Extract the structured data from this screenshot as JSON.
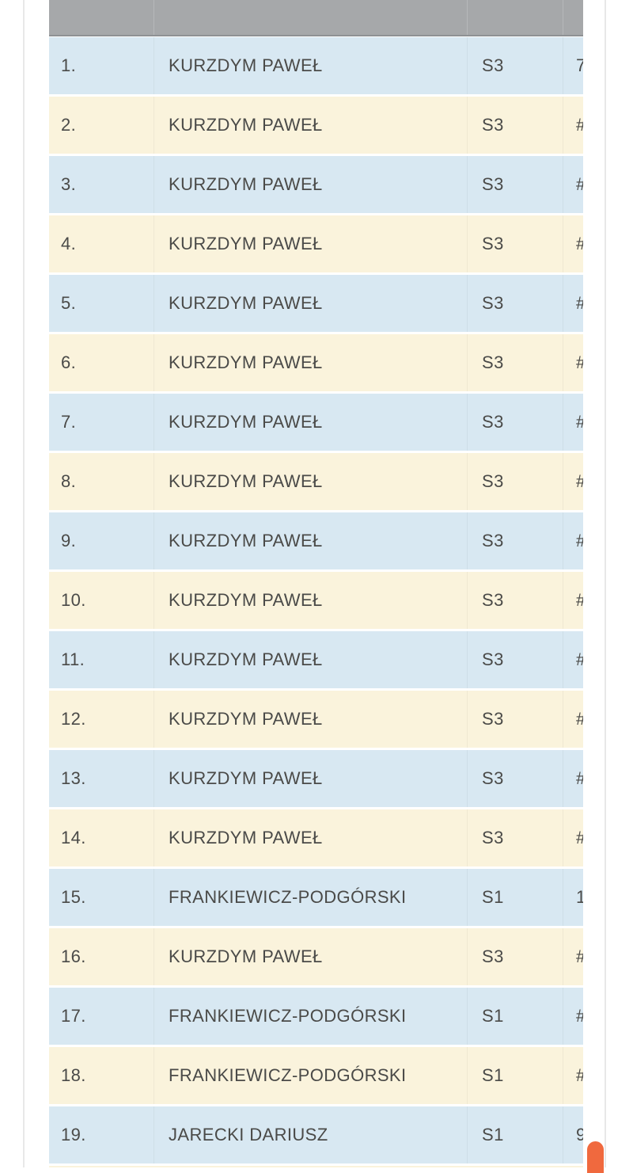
{
  "page": {
    "bg": "#ffffff",
    "edge_line_color": "#e8e8e8"
  },
  "table": {
    "header_bg": "#a6a8aa",
    "header_border": "#8e9194",
    "header_separator": "#b6b8ba",
    "row_blue": "#d8e8f2",
    "row_cream": "#faf3dc",
    "text_color": "#4a4a48",
    "header_labels": [
      "",
      "",
      "",
      ""
    ],
    "rows": [
      {
        "rank": "1.",
        "name": "KURZDYM PAWEŁ",
        "category": "S3",
        "score": "7"
      },
      {
        "rank": "2.",
        "name": "KURZDYM PAWEŁ",
        "category": "S3",
        "score": "#"
      },
      {
        "rank": "3.",
        "name": "KURZDYM PAWEŁ",
        "category": "S3",
        "score": "#"
      },
      {
        "rank": "4.",
        "name": "KURZDYM PAWEŁ",
        "category": "S3",
        "score": "#"
      },
      {
        "rank": "5.",
        "name": "KURZDYM PAWEŁ",
        "category": "S3",
        "score": "#"
      },
      {
        "rank": "6.",
        "name": "KURZDYM PAWEŁ",
        "category": "S3",
        "score": "#"
      },
      {
        "rank": "7.",
        "name": "KURZDYM PAWEŁ",
        "category": "S3",
        "score": "#"
      },
      {
        "rank": "8.",
        "name": "KURZDYM PAWEŁ",
        "category": "S3",
        "score": "#"
      },
      {
        "rank": "9.",
        "name": "KURZDYM PAWEŁ",
        "category": "S3",
        "score": "#"
      },
      {
        "rank": "10.",
        "name": "KURZDYM PAWEŁ",
        "category": "S3",
        "score": "#"
      },
      {
        "rank": "11.",
        "name": "KURZDYM PAWEŁ",
        "category": "S3",
        "score": "#"
      },
      {
        "rank": "12.",
        "name": "KURZDYM PAWEŁ",
        "category": "S3",
        "score": "#"
      },
      {
        "rank": "13.",
        "name": "KURZDYM PAWEŁ",
        "category": "S3",
        "score": "#"
      },
      {
        "rank": "14.",
        "name": "KURZDYM PAWEŁ",
        "category": "S3",
        "score": "#"
      },
      {
        "rank": "15.",
        "name": "FRANKIEWICZ-PODGÓRSKI",
        "category": "S1",
        "score": "1"
      },
      {
        "rank": "16.",
        "name": "KURZDYM PAWEŁ",
        "category": "S3",
        "score": "#"
      },
      {
        "rank": "17.",
        "name": "FRANKIEWICZ-PODGÓRSKI",
        "category": "S1",
        "score": "#"
      },
      {
        "rank": "18.",
        "name": "FRANKIEWICZ-PODGÓRSKI",
        "category": "S1",
        "score": "#"
      },
      {
        "rank": "19.",
        "name": "JARECKI DARIUSZ",
        "category": "S1",
        "score": "9"
      }
    ]
  },
  "scrollbar": {
    "thumb_color": "#f0693e"
  }
}
